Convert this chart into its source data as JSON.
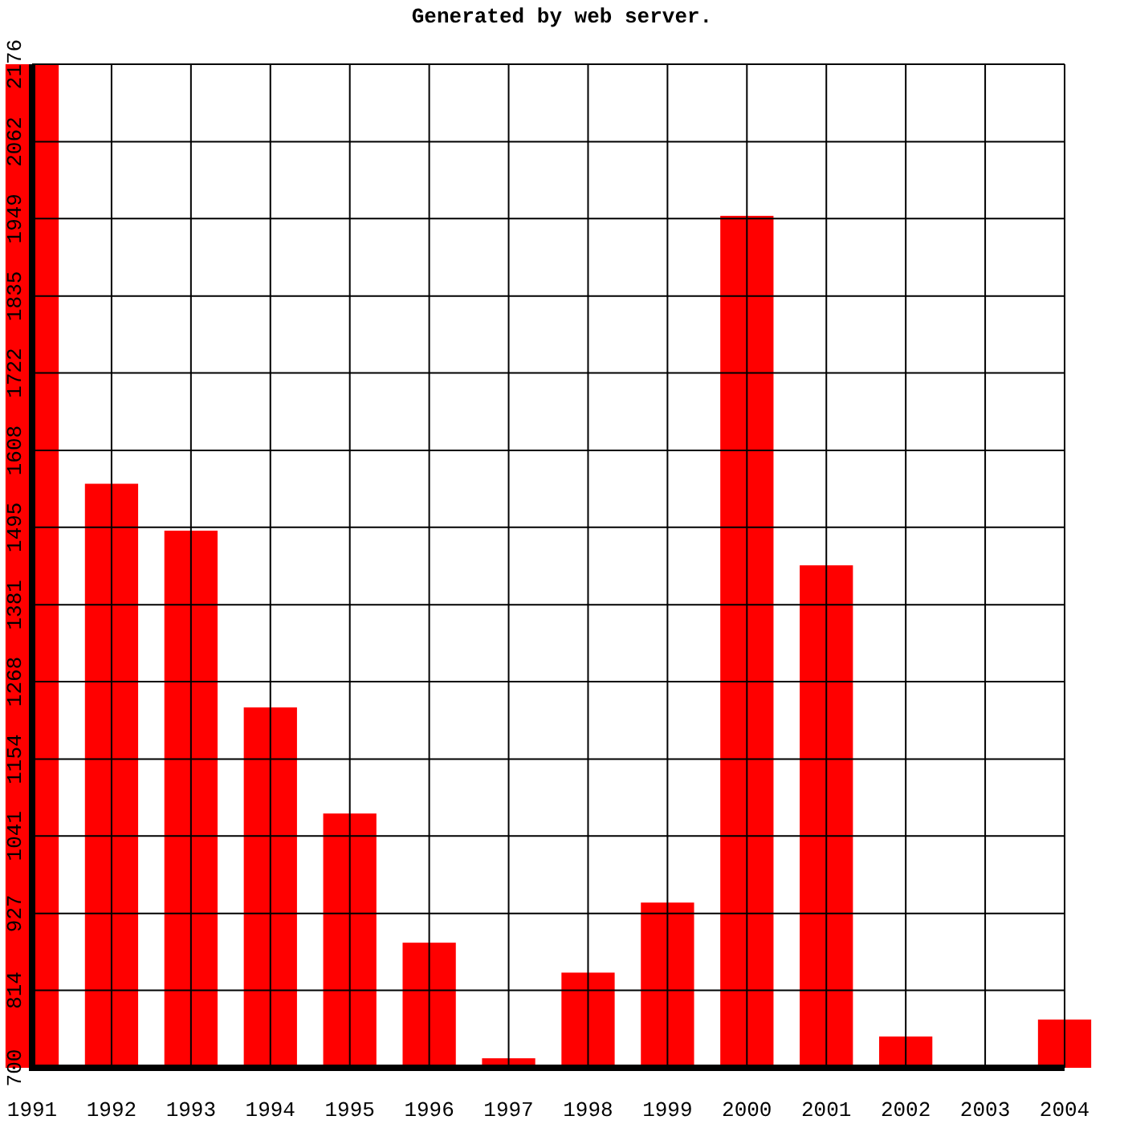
{
  "chart_data": {
    "type": "bar",
    "title": "Generated by web server.",
    "categories": [
      "1991",
      "1992",
      "1993",
      "1994",
      "1995",
      "1996",
      "1997",
      "1998",
      "1999",
      "2000",
      "2001",
      "2002",
      "2003",
      "2004"
    ],
    "values": [
      2176,
      1559,
      1490,
      1230,
      1074,
      884,
      714,
      840,
      943,
      1953,
      1439,
      746,
      null,
      771
    ],
    "color": "#ff0000",
    "ylim": [
      700,
      2176
    ],
    "yticks": [
      700,
      814,
      927,
      1041,
      1154,
      1268,
      1381,
      1495,
      1608,
      1722,
      1835,
      1949,
      2062,
      2176
    ],
    "grid": true
  }
}
